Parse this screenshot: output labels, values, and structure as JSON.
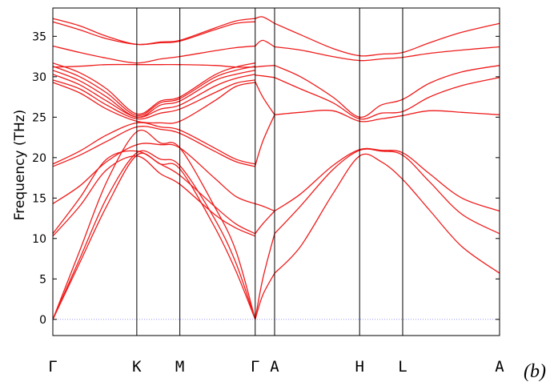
{
  "chart_data": {
    "type": "line",
    "title": "",
    "xlabel": "",
    "ylabel": "Frequency (THz)",
    "panel_label": "(b)",
    "ylim": [
      -2,
      38.5
    ],
    "xlim": [
      0,
      8.3
    ],
    "yticks": [
      "0",
      "5",
      "10",
      "15",
      "20",
      "25",
      "30",
      "35"
    ],
    "ytick_values": [
      0,
      5,
      10,
      15,
      20,
      25,
      30,
      35
    ],
    "kpoints": [
      {
        "label": "Γ",
        "x": 0
      },
      {
        "label": "K",
        "x": 1.56
      },
      {
        "label": "M",
        "x": 2.36
      },
      {
        "label": "Γ",
        "x": 3.76
      },
      {
        "label": "A",
        "x": 4.12
      },
      {
        "label": "H",
        "x": 5.7
      },
      {
        "label": "L",
        "x": 6.5
      },
      {
        "label": "A",
        "x": 8.3
      }
    ],
    "line_color": "#ee1c1c",
    "zero_line_color": "#8888ff",
    "grid": false,
    "series": [
      {
        "x": [
          0,
          0.5,
          1.0,
          1.56,
          2.0,
          2.36,
          3.0,
          3.4,
          3.76
        ],
        "y": [
          0,
          7.0,
          14.0,
          20.3,
          19.2,
          18.6,
          11.5,
          6.0,
          0
        ]
      },
      {
        "x": [
          0,
          0.5,
          1.0,
          1.56,
          2.0,
          2.36,
          3.0,
          3.4,
          3.76
        ],
        "y": [
          0,
          7.5,
          15.0,
          20.6,
          19.8,
          19.0,
          12.5,
          7.0,
          0
        ]
      },
      {
        "x": [
          0,
          0.5,
          1.0,
          1.56,
          2.0,
          2.36,
          3.0,
          3.4,
          3.76
        ],
        "y": [
          0,
          8.5,
          17.0,
          23.2,
          21.8,
          21.2,
          14.0,
          8.5,
          0
        ]
      },
      {
        "x": [
          0,
          0.5,
          1.0,
          1.56,
          2.0,
          2.36,
          3.0,
          3.4,
          3.76
        ],
        "y": [
          10.3,
          14.0,
          18.5,
          20.2,
          18.0,
          16.7,
          13.0,
          11.3,
          10.3
        ]
      },
      {
        "x": [
          0,
          0.5,
          1.0,
          1.56,
          2.0,
          2.36,
          3.0,
          3.4,
          3.76
        ],
        "y": [
          10.6,
          15.0,
          19.8,
          20.8,
          19.2,
          17.8,
          14.0,
          11.8,
          10.6
        ]
      },
      {
        "x": [
          0,
          0.5,
          1.0,
          1.56,
          2.0,
          2.36,
          3.0,
          3.4,
          3.76
        ],
        "y": [
          14.3,
          16.5,
          19.5,
          21.6,
          21.6,
          21.2,
          17.5,
          15.2,
          14.3
        ]
      },
      {
        "x": [
          0,
          0.5,
          1.0,
          1.56,
          2.0,
          2.36,
          3.0,
          3.4,
          3.76
        ],
        "y": [
          18.9,
          20.3,
          22.0,
          23.8,
          23.5,
          23.0,
          20.8,
          19.5,
          18.9
        ]
      },
      {
        "x": [
          0,
          0.5,
          1.0,
          1.56,
          2.0,
          2.36,
          3.0,
          3.4,
          3.76
        ],
        "y": [
          19.2,
          20.8,
          22.8,
          24.3,
          23.8,
          23.4,
          21.2,
          19.8,
          19.2
        ]
      },
      {
        "x": [
          0,
          0.5,
          1.0,
          1.56,
          2.0,
          2.36,
          3.0,
          3.4,
          3.76
        ],
        "y": [
          29.3,
          28.0,
          26.0,
          24.5,
          24.3,
          24.5,
          27.0,
          28.8,
          29.3
        ]
      },
      {
        "x": [
          0,
          0.5,
          1.0,
          1.56,
          2.0,
          2.36,
          3.0,
          3.4,
          3.76
        ],
        "y": [
          29.6,
          28.5,
          26.5,
          24.8,
          25.5,
          26.0,
          28.0,
          29.2,
          29.6
        ]
      },
      {
        "x": [
          0,
          0.5,
          1.0,
          1.56,
          2.0,
          2.36,
          3.0,
          3.4,
          3.76
        ],
        "y": [
          30.3,
          29.0,
          27.0,
          25.0,
          26.0,
          26.5,
          28.8,
          29.8,
          30.3
        ]
      },
      {
        "x": [
          0,
          0.5,
          1.0,
          1.56,
          2.0,
          2.36,
          3.0,
          3.4,
          3.76
        ],
        "y": [
          30.8,
          29.5,
          27.5,
          25.0,
          26.5,
          27.0,
          29.5,
          30.3,
          30.8
        ]
      },
      {
        "x": [
          0,
          0.5,
          1.0,
          1.56,
          2.0,
          2.36,
          3.0,
          3.4,
          3.76
        ],
        "y": [
          31.3,
          30.0,
          28.0,
          25.2,
          26.8,
          27.3,
          29.9,
          30.8,
          31.3
        ]
      },
      {
        "x": [
          0,
          0.5,
          1.0,
          1.56,
          2.0,
          2.36,
          3.0,
          3.4,
          3.76
        ],
        "y": [
          31.7,
          30.5,
          28.5,
          25.4,
          27.0,
          27.5,
          30.2,
          31.2,
          31.7
        ]
      },
      {
        "x": [
          0,
          0.5,
          1.0,
          1.56,
          2.0,
          2.36,
          3.0,
          3.4,
          3.76
        ],
        "y": [
          31.2,
          31.3,
          31.5,
          31.5,
          31.5,
          31.5,
          31.4,
          31.2,
          31.2
        ]
      },
      {
        "x": [
          0,
          0.5,
          1.0,
          1.56,
          2.0,
          2.36,
          3.0,
          3.4,
          3.76
        ],
        "y": [
          33.8,
          33.0,
          32.3,
          31.7,
          32.2,
          32.5,
          33.2,
          33.6,
          33.8
        ]
      },
      {
        "x": [
          0,
          0.5,
          1.0,
          1.56,
          2.0,
          2.36,
          3.0,
          3.4,
          3.76
        ],
        "y": [
          36.8,
          35.8,
          34.7,
          34.0,
          34.2,
          34.4,
          35.8,
          36.6,
          36.8
        ]
      },
      {
        "x": [
          0,
          0.5,
          1.0,
          1.56,
          2.0,
          2.36,
          3.0,
          3.4,
          3.76
        ],
        "y": [
          37.2,
          36.3,
          35.0,
          34.0,
          34.3,
          34.5,
          36.0,
          36.9,
          37.2
        ]
      },
      {
        "x": [
          3.76,
          3.9,
          4.12
        ],
        "y": [
          0,
          3.0,
          5.7
        ]
      },
      {
        "x": [
          3.76,
          3.9,
          4.12
        ],
        "y": [
          0,
          5.0,
          10.6
        ]
      },
      {
        "x": [
          3.76,
          3.9,
          4.12
        ],
        "y": [
          10.6,
          11.8,
          13.4
        ]
      },
      {
        "x": [
          3.76,
          3.9,
          4.12
        ],
        "y": [
          14.3,
          14.0,
          13.4
        ]
      },
      {
        "x": [
          3.76,
          3.9,
          4.12
        ],
        "y": [
          19.0,
          22.0,
          25.3
        ]
      },
      {
        "x": [
          3.76,
          3.9,
          4.12
        ],
        "y": [
          29.4,
          27.5,
          25.3
        ]
      },
      {
        "x": [
          3.76,
          3.9,
          4.12
        ],
        "y": [
          30.2,
          30.1,
          29.9
        ]
      },
      {
        "x": [
          3.76,
          3.9,
          4.12
        ],
        "y": [
          31.2,
          31.3,
          31.4
        ]
      },
      {
        "x": [
          3.76,
          3.9,
          4.12
        ],
        "y": [
          33.8,
          34.5,
          33.7
        ]
      },
      {
        "x": [
          3.76,
          3.9,
          4.12
        ],
        "y": [
          37.2,
          37.4,
          36.6
        ]
      },
      {
        "x": [
          4.12,
          4.6,
          5.2,
          5.7,
          6.1,
          6.5,
          7.0,
          7.6,
          8.3
        ],
        "y": [
          5.7,
          9.0,
          15.5,
          20.2,
          19.5,
          17.3,
          13.5,
          9.0,
          5.7
        ]
      },
      {
        "x": [
          4.12,
          4.6,
          5.2,
          5.7,
          6.1,
          6.5,
          7.0,
          7.6,
          8.3
        ],
        "y": [
          10.6,
          14.0,
          18.5,
          20.9,
          20.8,
          20.3,
          17.0,
          13.0,
          10.6
        ]
      },
      {
        "x": [
          4.12,
          4.6,
          5.2,
          5.7,
          6.1,
          6.5,
          7.0,
          7.6,
          8.3
        ],
        "y": [
          13.4,
          15.5,
          19.0,
          21.0,
          20.9,
          20.6,
          18.0,
          15.0,
          13.4
        ]
      },
      {
        "x": [
          4.12,
          4.6,
          5.2,
          5.7,
          6.1,
          6.5,
          7.0,
          7.6,
          8.3
        ],
        "y": [
          25.3,
          25.6,
          25.8,
          24.5,
          24.8,
          25.2,
          25.8,
          25.6,
          25.3
        ]
      },
      {
        "x": [
          4.12,
          4.6,
          5.2,
          5.7,
          6.1,
          6.5,
          7.0,
          7.6,
          8.3
        ],
        "y": [
          29.9,
          28.5,
          26.8,
          24.8,
          25.5,
          25.7,
          27.5,
          28.9,
          29.9
        ]
      },
      {
        "x": [
          4.12,
          4.6,
          5.2,
          5.7,
          6.1,
          6.5,
          7.0,
          7.6,
          8.3
        ],
        "y": [
          31.4,
          30.0,
          27.5,
          25.0,
          26.5,
          27.2,
          29.2,
          30.6,
          31.4
        ]
      },
      {
        "x": [
          4.12,
          4.6,
          5.2,
          5.7,
          6.1,
          6.5,
          7.0,
          7.6,
          8.3
        ],
        "y": [
          33.7,
          33.3,
          32.5,
          32.0,
          32.2,
          32.4,
          32.9,
          33.3,
          33.7
        ]
      },
      {
        "x": [
          4.12,
          4.6,
          5.2,
          5.7,
          6.1,
          6.5,
          7.0,
          7.6,
          8.3
        ],
        "y": [
          36.6,
          35.2,
          33.5,
          32.6,
          32.8,
          33.0,
          34.2,
          35.5,
          36.6
        ]
      }
    ]
  }
}
